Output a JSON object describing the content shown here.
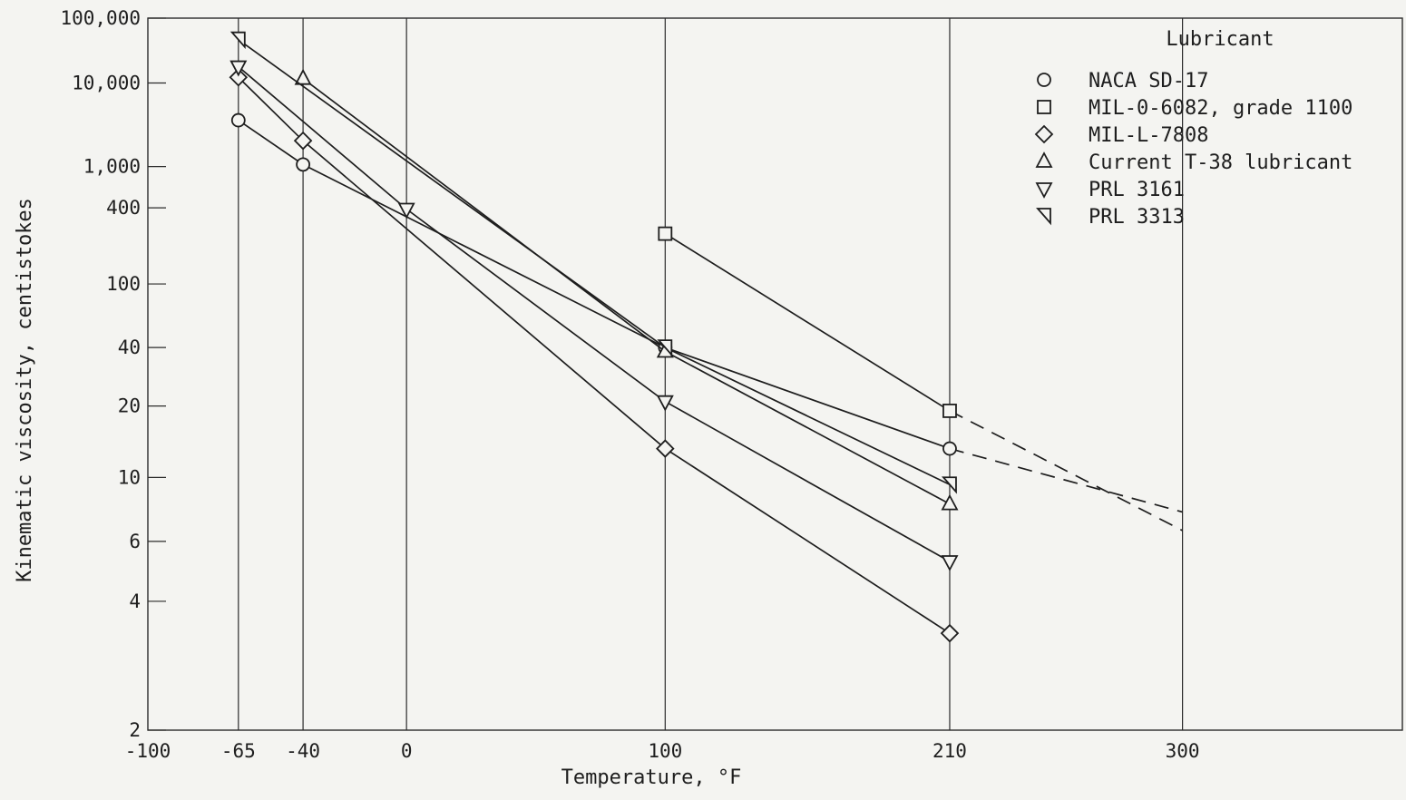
{
  "chart_data": {
    "type": "line",
    "title": "",
    "xlabel": "Temperature, ",
    "xlabel_unit": "°F",
    "ylabel": "Kinematic viscosity, centistokes",
    "y_scale": "ASTM viscosity-temperature (log-log)",
    "xlim": [
      -100,
      385
    ],
    "ylim": [
      2,
      100000
    ],
    "x_ticks": [
      {
        "value": -100,
        "label": "-100"
      },
      {
        "value": -65,
        "label": "-65"
      },
      {
        "value": -40,
        "label": "-40"
      },
      {
        "value": 0,
        "label": "0"
      },
      {
        "value": 100,
        "label": "100"
      },
      {
        "value": 210,
        "label": "210"
      },
      {
        "value": 300,
        "label": "300"
      }
    ],
    "y_ticks": [
      {
        "value": 100000,
        "label": "100,000"
      },
      {
        "value": 10000,
        "label": "10,000"
      },
      {
        "value": 1000,
        "label": "1,000"
      },
      {
        "value": 400,
        "label": "400"
      },
      {
        "value": 100,
        "label": "100"
      },
      {
        "value": 40,
        "label": "40"
      },
      {
        "value": 20,
        "label": "20"
      },
      {
        "value": 10,
        "label": "10"
      },
      {
        "value": 6,
        "label": "6"
      },
      {
        "value": 4,
        "label": "4"
      },
      {
        "value": 2,
        "label": "2"
      }
    ],
    "grid": "vertical lines at -65, -40, 0, 100, 210, 300",
    "legend": {
      "title": "Lubricant",
      "placement": "top-right"
    },
    "series": [
      {
        "name": "NACA SD-17",
        "marker": "circle",
        "points": [
          [
            -65,
            3300
          ],
          [
            -40,
            1050
          ],
          [
            100,
            40
          ],
          [
            210,
            13
          ]
        ],
        "extrapolated": [
          [
            210,
            13
          ],
          [
            300,
            7.5
          ]
        ]
      },
      {
        "name": "MIL-0-6082, grade 1100",
        "marker": "square",
        "points": [
          [
            100,
            240
          ],
          [
            210,
            19
          ]
        ],
        "extrapolated": [
          [
            210,
            19
          ],
          [
            300,
            6.5
          ]
        ]
      },
      {
        "name": "MIL-L-7808",
        "marker": "diamond",
        "points": [
          [
            -65,
            12000
          ],
          [
            -40,
            1900
          ],
          [
            100,
            13
          ],
          [
            210,
            3.3
          ]
        ]
      },
      {
        "name": "Current T-38 lubricant",
        "marker": "triangle-up",
        "points": [
          [
            -40,
            11500
          ],
          [
            100,
            38
          ],
          [
            210,
            8
          ]
        ]
      },
      {
        "name": "PRL 3161",
        "marker": "triangle-down",
        "points": [
          [
            -65,
            17000
          ],
          [
            0,
            390
          ],
          [
            100,
            21
          ],
          [
            210,
            5.2
          ]
        ]
      },
      {
        "name": "PRL 3313",
        "marker": "triangle-left",
        "points": [
          [
            -65,
            44000
          ],
          [
            100,
            40
          ],
          [
            210,
            9.4
          ]
        ]
      }
    ]
  }
}
